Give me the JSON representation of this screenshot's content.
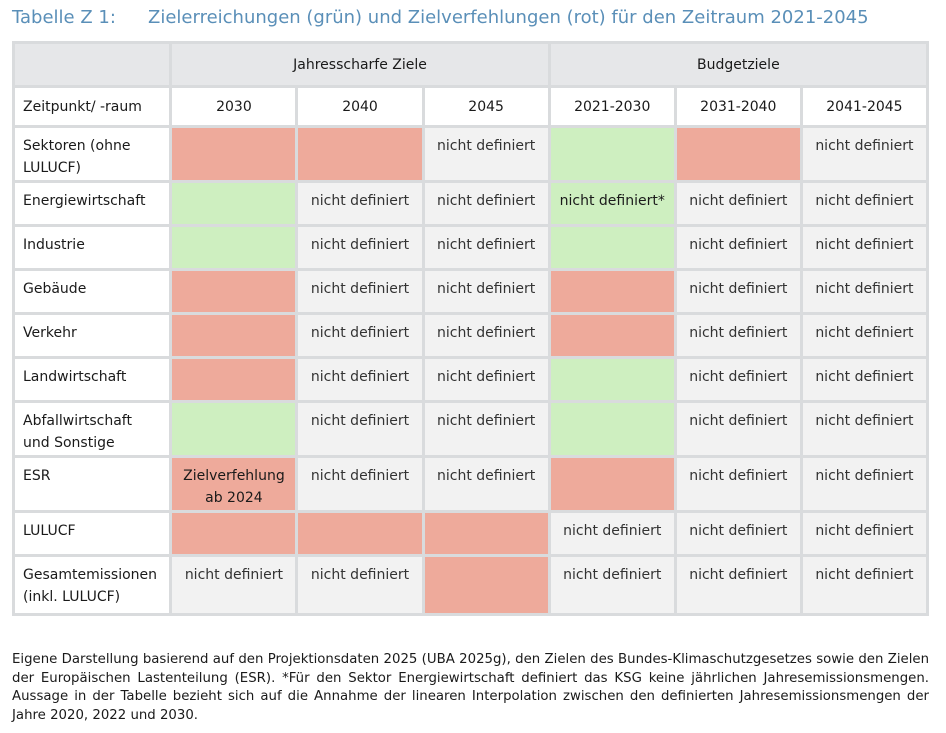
{
  "title": {
    "number": "Tabelle Z 1:",
    "text": "Zielerreichungen (grün) und Zielverfehlungen (rot) für den Zeitraum 2021-2045"
  },
  "groups": {
    "annual": "Jahresscharfe Ziele",
    "budget": "Budgetziele"
  },
  "header": {
    "first": "Zeitpunkt/ -raum",
    "cols": [
      "2030",
      "2040",
      "2045",
      "2021-2030",
      "2031-2040",
      "2041-2045"
    ]
  },
  "colors": {
    "red": "#eeaa9b",
    "green": "#ceefc0",
    "not_defined": "#f2f2f2"
  },
  "rows": [
    {
      "label": "Sektoren (ohne LULUCF)",
      "cells": [
        {
          "status": "red",
          "text": ""
        },
        {
          "status": "red",
          "text": ""
        },
        {
          "status": "nd",
          "text": "nicht definiert"
        },
        {
          "status": "green",
          "text": ""
        },
        {
          "status": "red",
          "text": ""
        },
        {
          "status": "nd",
          "text": "nicht definiert"
        }
      ]
    },
    {
      "label": "Energiewirtschaft",
      "cells": [
        {
          "status": "green",
          "text": ""
        },
        {
          "status": "nd",
          "text": "nicht definiert"
        },
        {
          "status": "nd",
          "text": "nicht definiert"
        },
        {
          "status": "green",
          "text": "nicht definiert*"
        },
        {
          "status": "nd",
          "text": "nicht definiert"
        },
        {
          "status": "nd",
          "text": "nicht definiert"
        }
      ]
    },
    {
      "label": "Industrie",
      "cells": [
        {
          "status": "green",
          "text": ""
        },
        {
          "status": "nd",
          "text": "nicht definiert"
        },
        {
          "status": "nd",
          "text": "nicht definiert"
        },
        {
          "status": "green",
          "text": ""
        },
        {
          "status": "nd",
          "text": "nicht definiert"
        },
        {
          "status": "nd",
          "text": "nicht definiert"
        }
      ]
    },
    {
      "label": "Gebäude",
      "cells": [
        {
          "status": "red",
          "text": ""
        },
        {
          "status": "nd",
          "text": "nicht definiert"
        },
        {
          "status": "nd",
          "text": "nicht definiert"
        },
        {
          "status": "red",
          "text": ""
        },
        {
          "status": "nd",
          "text": "nicht definiert"
        },
        {
          "status": "nd",
          "text": "nicht definiert"
        }
      ]
    },
    {
      "label": "Verkehr",
      "cells": [
        {
          "status": "red",
          "text": ""
        },
        {
          "status": "nd",
          "text": "nicht definiert"
        },
        {
          "status": "nd",
          "text": "nicht definiert"
        },
        {
          "status": "red",
          "text": ""
        },
        {
          "status": "nd",
          "text": "nicht definiert"
        },
        {
          "status": "nd",
          "text": "nicht definiert"
        }
      ]
    },
    {
      "label": "Landwirtschaft",
      "cells": [
        {
          "status": "red",
          "text": ""
        },
        {
          "status": "nd",
          "text": "nicht definiert"
        },
        {
          "status": "nd",
          "text": "nicht definiert"
        },
        {
          "status": "green",
          "text": ""
        },
        {
          "status": "nd",
          "text": "nicht definiert"
        },
        {
          "status": "nd",
          "text": "nicht definiert"
        }
      ]
    },
    {
      "label": "Abfallwirtschaft und Sonstige",
      "cells": [
        {
          "status": "green",
          "text": ""
        },
        {
          "status": "nd",
          "text": "nicht definiert"
        },
        {
          "status": "nd",
          "text": "nicht definiert"
        },
        {
          "status": "green",
          "text": ""
        },
        {
          "status": "nd",
          "text": "nicht definiert"
        },
        {
          "status": "nd",
          "text": "nicht definiert"
        }
      ]
    },
    {
      "label": "ESR",
      "cells": [
        {
          "status": "red",
          "text": "Zielverfehlung ab 2024"
        },
        {
          "status": "nd",
          "text": "nicht definiert"
        },
        {
          "status": "nd",
          "text": "nicht definiert"
        },
        {
          "status": "red",
          "text": ""
        },
        {
          "status": "nd",
          "text": "nicht definiert"
        },
        {
          "status": "nd",
          "text": "nicht definiert"
        }
      ]
    },
    {
      "label": "LULUCF",
      "cells": [
        {
          "status": "red",
          "text": ""
        },
        {
          "status": "red",
          "text": ""
        },
        {
          "status": "red",
          "text": ""
        },
        {
          "status": "nd",
          "text": "nicht definiert"
        },
        {
          "status": "nd",
          "text": "nicht definiert"
        },
        {
          "status": "nd",
          "text": "nicht definiert"
        }
      ]
    },
    {
      "label": "Gesamtemissionen (inkl. LULUCF)",
      "cells": [
        {
          "status": "nd",
          "text": "nicht definiert"
        },
        {
          "status": "nd",
          "text": "nicht definiert"
        },
        {
          "status": "red",
          "text": ""
        },
        {
          "status": "nd",
          "text": "nicht definiert"
        },
        {
          "status": "nd",
          "text": "nicht definiert"
        },
        {
          "status": "nd",
          "text": "nicht definiert"
        }
      ]
    }
  ],
  "footnote": "Eigene Darstellung basierend auf den Projektionsdaten 2025 (UBA 2025g), den Zielen des Bundes-Klimaschutzgesetzes sowie den Zielen der Europäischen Lastenteilung (ESR). *Für den Sektor Energiewirtschaft definiert das KSG keine jährlichen Jahresemissionsmengen. Aussage in der Tabelle bezieht sich auf die Annahme der linearen Interpolation zwischen den definierten Jahresemissionsmengen der Jahre 2020, 2022 und 2030."
}
